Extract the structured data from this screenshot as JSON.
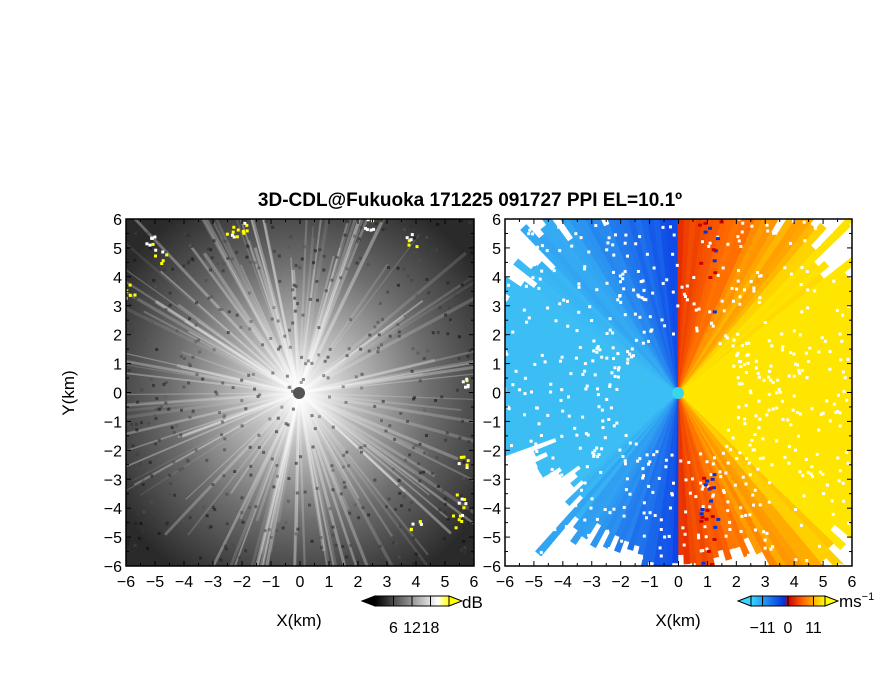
{
  "title": "3D-CDL@Fukuoka 171225 091727 PPI EL=10.1º",
  "chart_data": [
    {
      "type": "heatmap",
      "panel": "reflectivity",
      "xlabel": "X(km)",
      "ylabel": "Y(km)",
      "xlim": [
        -6,
        6
      ],
      "ylim": [
        -6,
        6
      ],
      "xticks": [
        "-6",
        "-5",
        "-4",
        "-3",
        "-2",
        "-1",
        "0",
        "1",
        "2",
        "3",
        "4",
        "5",
        "6"
      ],
      "yticks": [
        "-6",
        "-5",
        "-4",
        "-3",
        "-2",
        "-1",
        "0",
        "1",
        "2",
        "3",
        "4",
        "5",
        "6"
      ],
      "colorbar": {
        "unit": "dB",
        "ticks": [
          "6",
          "12",
          "18"
        ],
        "tick_values": [
          6,
          12,
          18
        ],
        "range": [
          0,
          24
        ],
        "colors": [
          "#000000",
          "#ffffff",
          "#ffff00"
        ]
      }
    },
    {
      "type": "heatmap",
      "panel": "doppler-velocity",
      "xlabel": "X(km)",
      "ylabel": "",
      "xlim": [
        -6,
        6
      ],
      "ylim": [
        -6,
        6
      ],
      "xticks": [
        "-6",
        "-5",
        "-4",
        "-3",
        "-2",
        "-1",
        "0",
        "1",
        "2",
        "3",
        "4",
        "5",
        "6"
      ],
      "yticks": [
        "-6",
        "-5",
        "-4",
        "-3",
        "-2",
        "-1",
        "0",
        "1",
        "2",
        "3",
        "4",
        "5",
        "6"
      ],
      "colorbar": {
        "unit": "ms",
        "unit_exp": "−1",
        "ticks": [
          "−11",
          "0",
          "11"
        ],
        "tick_values": [
          -11,
          0,
          11
        ],
        "range": [
          -16,
          16
        ],
        "colors": [
          "#3ad6ff",
          "#0033dd",
          "#cc0000",
          "#ff6600",
          "#ffff00"
        ]
      }
    }
  ]
}
